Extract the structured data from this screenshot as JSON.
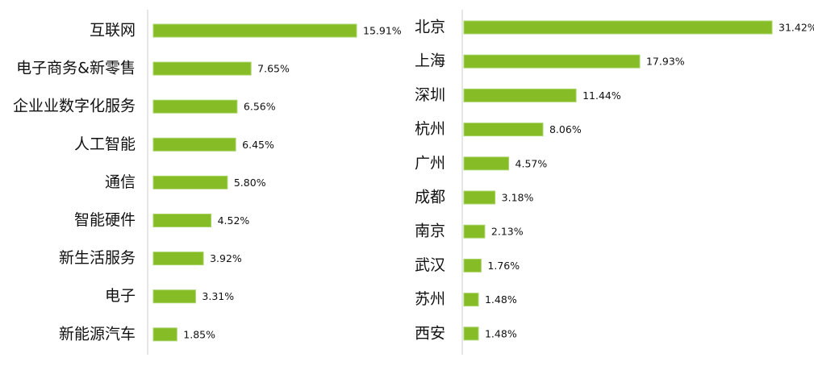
{
  "chart_data": [
    {
      "type": "hbar",
      "color": "#86bc25",
      "categories": [
        "互联网",
        "电子商务&新零售",
        "企业业数字化服务",
        "人工智能",
        "通信",
        "智能硬件",
        "新生活服务",
        "电子",
        "新能源汽车"
      ],
      "values": [
        15.91,
        7.65,
        6.56,
        6.45,
        5.8,
        4.52,
        3.92,
        3.31,
        1.85
      ],
      "value_labels": [
        "15.91%",
        "7.65%",
        "6.56%",
        "6.45%",
        "5.80%",
        "4.52%",
        "3.92%",
        "3.31%",
        "1.85%"
      ]
    },
    {
      "type": "hbar",
      "color": "#86bc25",
      "categories": [
        "北京",
        "上海",
        "深圳",
        "杭州",
        "广州",
        "成都",
        "南京",
        "武汉",
        "苏州",
        "西安"
      ],
      "values": [
        31.42,
        17.93,
        11.44,
        8.06,
        4.57,
        3.18,
        2.13,
        1.76,
        1.48,
        1.48
      ],
      "value_labels": [
        "31.42%",
        "17.93%",
        "11.44%",
        "8.06%",
        "4.57%",
        "3.18%",
        "2.13%",
        "1.76%",
        "1.48%",
        "1.48%"
      ]
    }
  ]
}
